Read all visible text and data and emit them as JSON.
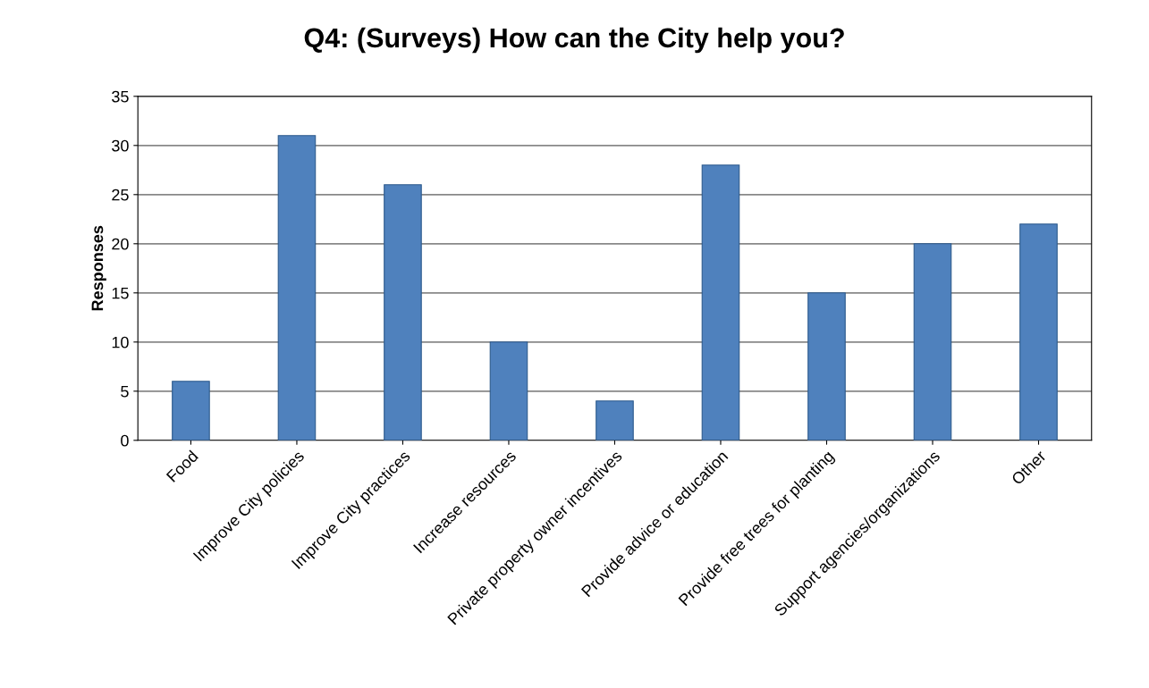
{
  "chart_data": {
    "type": "bar",
    "title": "Q4: (Surveys) How can the City help you?",
    "ylabel": "Responses",
    "categories": [
      "Food",
      "Improve City policies",
      "Improve City practices",
      "Increase resources",
      "Private property owner incentives",
      "Provide advice or education",
      "Provide free trees for planting",
      "Support agencies/organizations",
      "Other"
    ],
    "values": [
      6,
      31,
      26,
      10,
      4,
      28,
      15,
      20,
      22
    ],
    "color": "#4f81bd",
    "ylim": [
      0,
      35
    ],
    "yticks": [
      0,
      5,
      10,
      15,
      20,
      25,
      30,
      35
    ],
    "grid": "y"
  }
}
